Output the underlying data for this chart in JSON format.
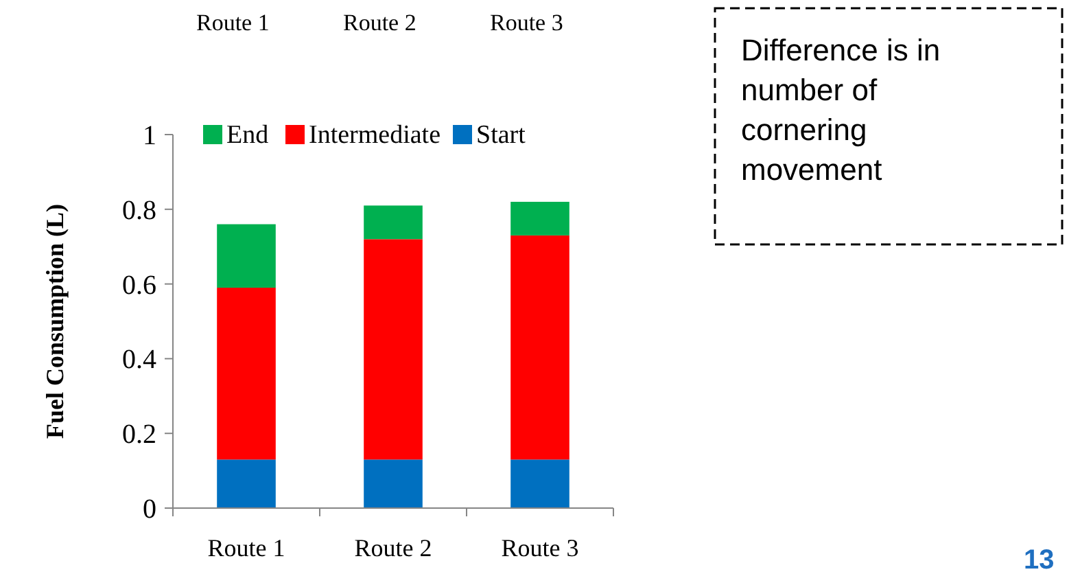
{
  "chart_data": {
    "type": "bar",
    "stacked": true,
    "ylabel": "Fuel Consumption (L)",
    "categories": [
      "Route 1",
      "Route 2",
      "Route 3"
    ],
    "series": [
      {
        "name": "Start",
        "color": "#0070c0",
        "values": [
          0.13,
          0.13,
          0.13
        ]
      },
      {
        "name": "Intermediate",
        "color": "#ff0000",
        "values": [
          0.46,
          0.59,
          0.6
        ]
      },
      {
        "name": "End",
        "color": "#00b050",
        "values": [
          0.17,
          0.09,
          0.09
        ]
      }
    ],
    "ylim": [
      0,
      1
    ],
    "yticks": [
      0,
      0.2,
      0.4,
      0.6,
      0.8,
      1
    ],
    "grid": false,
    "legend": "top",
    "annotations": [
      "Route 1",
      "Route 2",
      "Route 3",
      "Difference is in number of cornering movement",
      "13"
    ]
  }
}
